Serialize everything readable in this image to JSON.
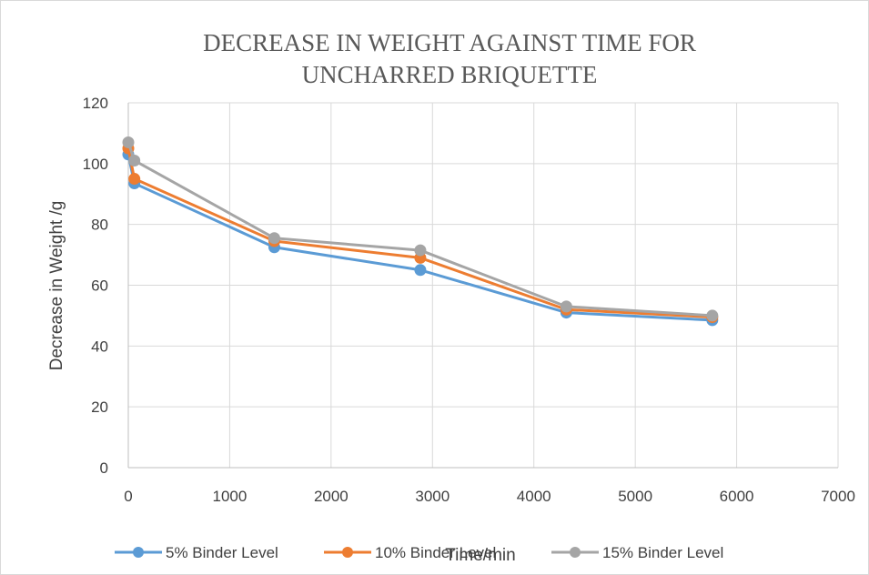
{
  "chart_data": {
    "type": "line",
    "title": "DECREASE IN WEIGHT AGAINST TIME FOR UNCHARRED BRIQUETTE",
    "title_lines": [
      "DECREASE IN WEIGHT AGAINST TIME FOR",
      "UNCHARRED BRIQUETTE"
    ],
    "xlabel": "Time/min",
    "ylabel": "Decrease in Weight /g",
    "xlim": [
      0,
      7000
    ],
    "ylim": [
      0,
      120
    ],
    "xticks": [
      0,
      1000,
      2000,
      3000,
      4000,
      5000,
      6000,
      7000
    ],
    "yticks": [
      0,
      20,
      40,
      60,
      80,
      100,
      120
    ],
    "grid": true,
    "legend_position": "bottom",
    "series": [
      {
        "name": "5% Binder Level",
        "color": "#5b9bd5",
        "x": [
          0,
          60,
          1440,
          2880,
          4320,
          5760
        ],
        "y": [
          103,
          93.5,
          72.5,
          65,
          51,
          48.5
        ]
      },
      {
        "name": "10% Binder Level",
        "color": "#ed7d31",
        "x": [
          0,
          60,
          1440,
          2880,
          4320,
          5760
        ],
        "y": [
          105,
          95,
          74.5,
          69,
          52,
          49.5
        ]
      },
      {
        "name": "15% Binder Level",
        "color": "#a5a5a5",
        "x": [
          0,
          60,
          1440,
          2880,
          4320,
          5760
        ],
        "y": [
          107,
          101,
          75.5,
          71.5,
          53,
          50
        ]
      }
    ]
  }
}
